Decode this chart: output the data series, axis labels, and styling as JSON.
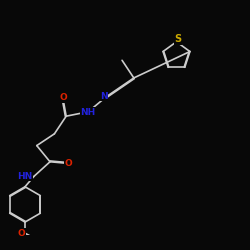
{
  "bg": "#080808",
  "bc": "#cccccc",
  "Nc": "#2222dd",
  "Oc": "#dd2200",
  "Sc": "#ccaa00",
  "fs": 6.5,
  "lw": 1.2,
  "figsize": [
    2.5,
    2.5
  ],
  "dpi": 100,
  "xlim": [
    1.0,
    9.5
  ],
  "ylim": [
    2.5,
    10.0
  ]
}
